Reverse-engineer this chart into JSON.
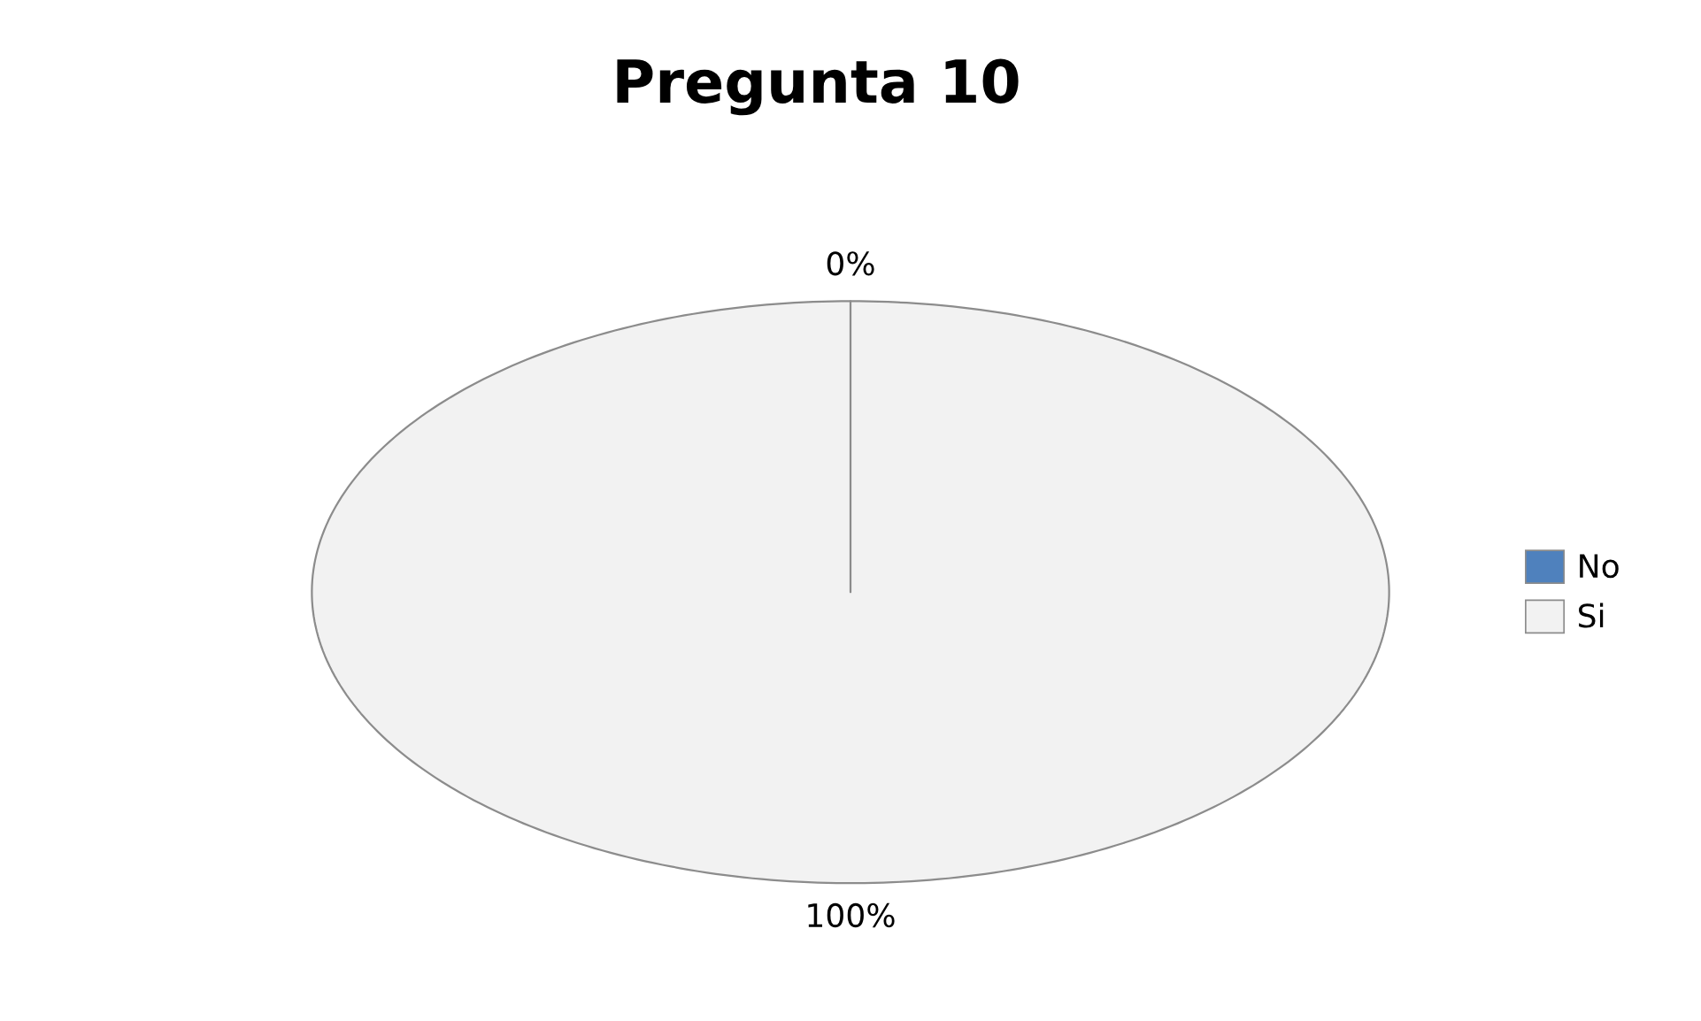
{
  "chart_data": {
    "type": "pie",
    "title": "Pregunta 10",
    "categories": [
      "No",
      "Si"
    ],
    "values": [
      0,
      100
    ],
    "colors": [
      "#4f81bd",
      "#f2f2f2"
    ],
    "value_labels": [
      "0%",
      "100%"
    ],
    "legend": "right"
  }
}
